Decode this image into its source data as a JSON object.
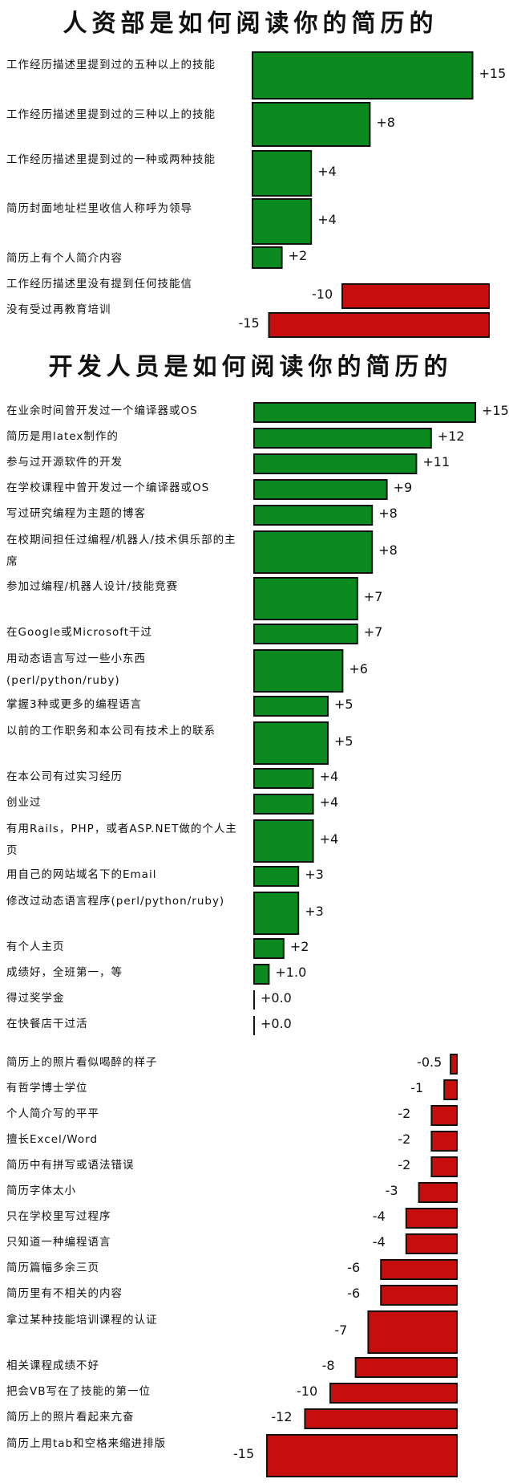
{
  "colors": {
    "positive": "#0a8a1f",
    "negative": "#c80d0d",
    "outline": "#111111"
  },
  "chart_data": [
    {
      "type": "bar",
      "orientation": "horizontal",
      "title": "人资部是如何阅读你的简历的",
      "categories": [
        "工作经历描述里提到过的五种以上的技能",
        "工作经历描述里提到过的三种以上的技能",
        "工作经历描述里提到过的一种或两种技能",
        "简历封面地址栏里收信人称呼为领导",
        "简历上有个人简介内容",
        "工作经历描述里没有提到任何技能信",
        "没有受过再教育培训"
      ],
      "values": [
        15,
        8,
        4,
        4,
        2,
        -10,
        -15
      ],
      "value_labels": [
        "+15",
        "+8",
        "+4",
        "+4",
        "+2",
        "-10",
        "-15"
      ]
    },
    {
      "type": "bar",
      "orientation": "horizontal",
      "title": "开发人员是如何阅读你的简历的",
      "categories": [
        "在业余时间曾开发过一个编译器或OS",
        "简历是用latex制作的",
        "参与过开源软件的开发",
        "在学校课程中曾开发过一个编译器或OS",
        "写过研究编程为主题的博客",
        "在校期间担任过编程/机器人/技术俱乐部的主席",
        "参加过编程/机器人设计/技能竞赛",
        "在Google或Microsoft干过",
        "用动态语言写过一些小东西(perl/python/ruby)",
        "掌握3种或更多的编程语言",
        "以前的工作职务和本公司有技术上的联系",
        "在本公司有过实习经历",
        "创业过",
        "有用Rails，PHP，或者ASP.NET做的个人主页",
        "用自己的网站域名下的Email",
        "修改过动态语言程序(perl/python/ruby)",
        "有个人主页",
        "成绩好，全班第一，等",
        "得过奖学金",
        "在快餐店干过活",
        "简历上的照片看似喝醉的样子",
        "有哲学博士学位",
        "个人简介写的平平",
        "擅长Excel/Word",
        "简历中有拼写或语法错误",
        "简历字体太小",
        "只在学校里写过程序",
        "只知道一种编程语言",
        "简历篇幅多余三页",
        "简历里有不相关的内容",
        "拿过某种技能培训课程的认证",
        "相关课程成绩不好",
        "把会VB写在了技能的第一位",
        "简历上的照片看起来亢奋",
        "简历上用tab和空格来缩进排版"
      ],
      "values": [
        15,
        12,
        11,
        9,
        8,
        8,
        7,
        7,
        6,
        5,
        5,
        4,
        4,
        4,
        3,
        3,
        2,
        1.0,
        0.0,
        0.0,
        -0.5,
        -1,
        -2,
        -2,
        -2,
        -3,
        -4,
        -4,
        -6,
        -6,
        -7,
        -8,
        -10,
        -12,
        -15
      ],
      "value_labels": [
        "+15",
        "+12",
        "+11",
        "+9",
        "+8",
        "+8",
        "+7",
        "+7",
        "+6",
        "+5",
        "+5",
        "+4",
        "+4",
        "+4",
        "+3",
        "+3",
        "+2",
        "+1.0",
        "+0.0",
        "+0.0",
        "-0.5",
        "-1",
        "-2",
        "-2",
        "-2",
        "-3",
        "-4",
        "-4",
        "-6",
        "-6",
        "-7",
        "-8",
        "-10",
        "-12",
        "-15"
      ]
    }
  ]
}
